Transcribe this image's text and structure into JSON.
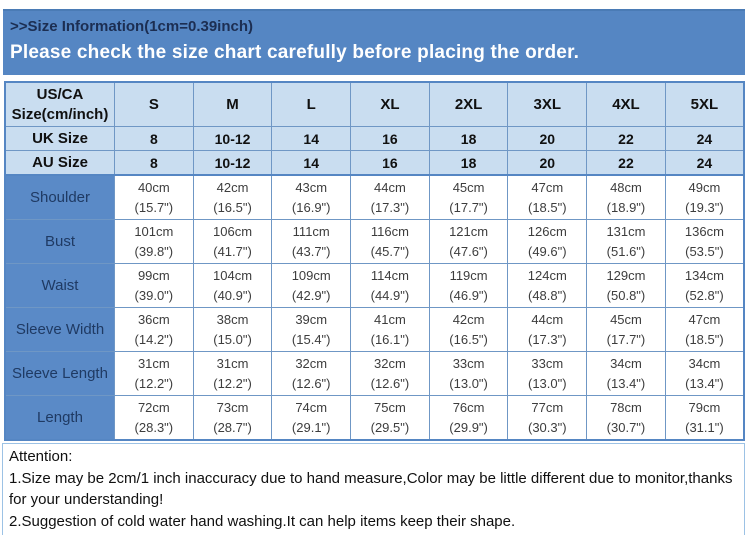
{
  "banner": {
    "title": ">>Size Information(1cm=0.39inch)",
    "subtitle": "Please check the size chart carefully before placing the order."
  },
  "table": {
    "corner_header_line1": "US/CA",
    "corner_header_line2": "Size(cm/inch)",
    "size_columns": [
      "S",
      "M",
      "L",
      "XL",
      "2XL",
      "3XL",
      "4XL",
      "5XL"
    ],
    "conversion_rows": [
      {
        "label": "UK Size",
        "values": [
          "8",
          "10-12",
          "14",
          "16",
          "18",
          "20",
          "22",
          "24"
        ]
      },
      {
        "label": "AU Size",
        "values": [
          "8",
          "10-12",
          "14",
          "16",
          "18",
          "20",
          "22",
          "24"
        ]
      }
    ],
    "measurement_rows": [
      {
        "label": "Shoulder",
        "cm": [
          "40cm",
          "42cm",
          "43cm",
          "44cm",
          "45cm",
          "47cm",
          "48cm",
          "49cm"
        ],
        "inch": [
          "(15.7\")",
          "(16.5\")",
          "(16.9\")",
          "(17.3\")",
          "(17.7\")",
          "(18.5\")",
          "(18.9\")",
          "(19.3\")"
        ]
      },
      {
        "label": "Bust",
        "cm": [
          "101cm",
          "106cm",
          "111cm",
          "116cm",
          "121cm",
          "126cm",
          "131cm",
          "136cm"
        ],
        "inch": [
          "(39.8\")",
          "(41.7\")",
          "(43.7\")",
          "(45.7\")",
          "(47.6\")",
          "(49.6\")",
          "(51.6\")",
          "(53.5\")"
        ]
      },
      {
        "label": "Waist",
        "cm": [
          "99cm",
          "104cm",
          "109cm",
          "114cm",
          "119cm",
          "124cm",
          "129cm",
          "134cm"
        ],
        "inch": [
          "(39.0\")",
          "(40.9\")",
          "(42.9\")",
          "(44.9\")",
          "(46.9\")",
          "(48.8\")",
          "(50.8\")",
          "(52.8\")"
        ]
      },
      {
        "label": "Sleeve Width",
        "cm": [
          "36cm",
          "38cm",
          "39cm",
          "41cm",
          "42cm",
          "44cm",
          "45cm",
          "47cm"
        ],
        "inch": [
          "(14.2\")",
          "(15.0\")",
          "(15.4\")",
          "(16.1\")",
          "(16.5\")",
          "(17.3\")",
          "(17.7\")",
          "(18.5\")"
        ]
      },
      {
        "label": "Sleeve Length",
        "cm": [
          "31cm",
          "31cm",
          "32cm",
          "32cm",
          "33cm",
          "33cm",
          "34cm",
          "34cm"
        ],
        "inch": [
          "(12.2\")",
          "(12.2\")",
          "(12.6\")",
          "(12.6\")",
          "(13.0\")",
          "(13.0\")",
          "(13.4\")",
          "(13.4\")"
        ]
      },
      {
        "label": "Length",
        "cm": [
          "72cm",
          "73cm",
          "74cm",
          "75cm",
          "76cm",
          "77cm",
          "78cm",
          "79cm"
        ],
        "inch": [
          "(28.3\")",
          "(28.7\")",
          "(29.1\")",
          "(29.5\")",
          "(29.9\")",
          "(30.3\")",
          "(30.7\")",
          "(31.1\")"
        ]
      }
    ]
  },
  "attention": {
    "title": "Attention:",
    "notes": [
      "1.Size may be 2cm/1 inch inaccuracy due to hand measure,Color may be little different due to monitor,thanks for your understanding!",
      "2.Suggestion of cold water hand washing.It can help items keep their shape."
    ]
  },
  "colors": {
    "banner_blue": "#5586c3",
    "light_blue": "#c9ddf0",
    "border_blue": "#6f97c5",
    "attention_border": "#9cc2e5",
    "banner_title_text": "#1c2e52",
    "measurement_label_text": "#1f3a63"
  }
}
